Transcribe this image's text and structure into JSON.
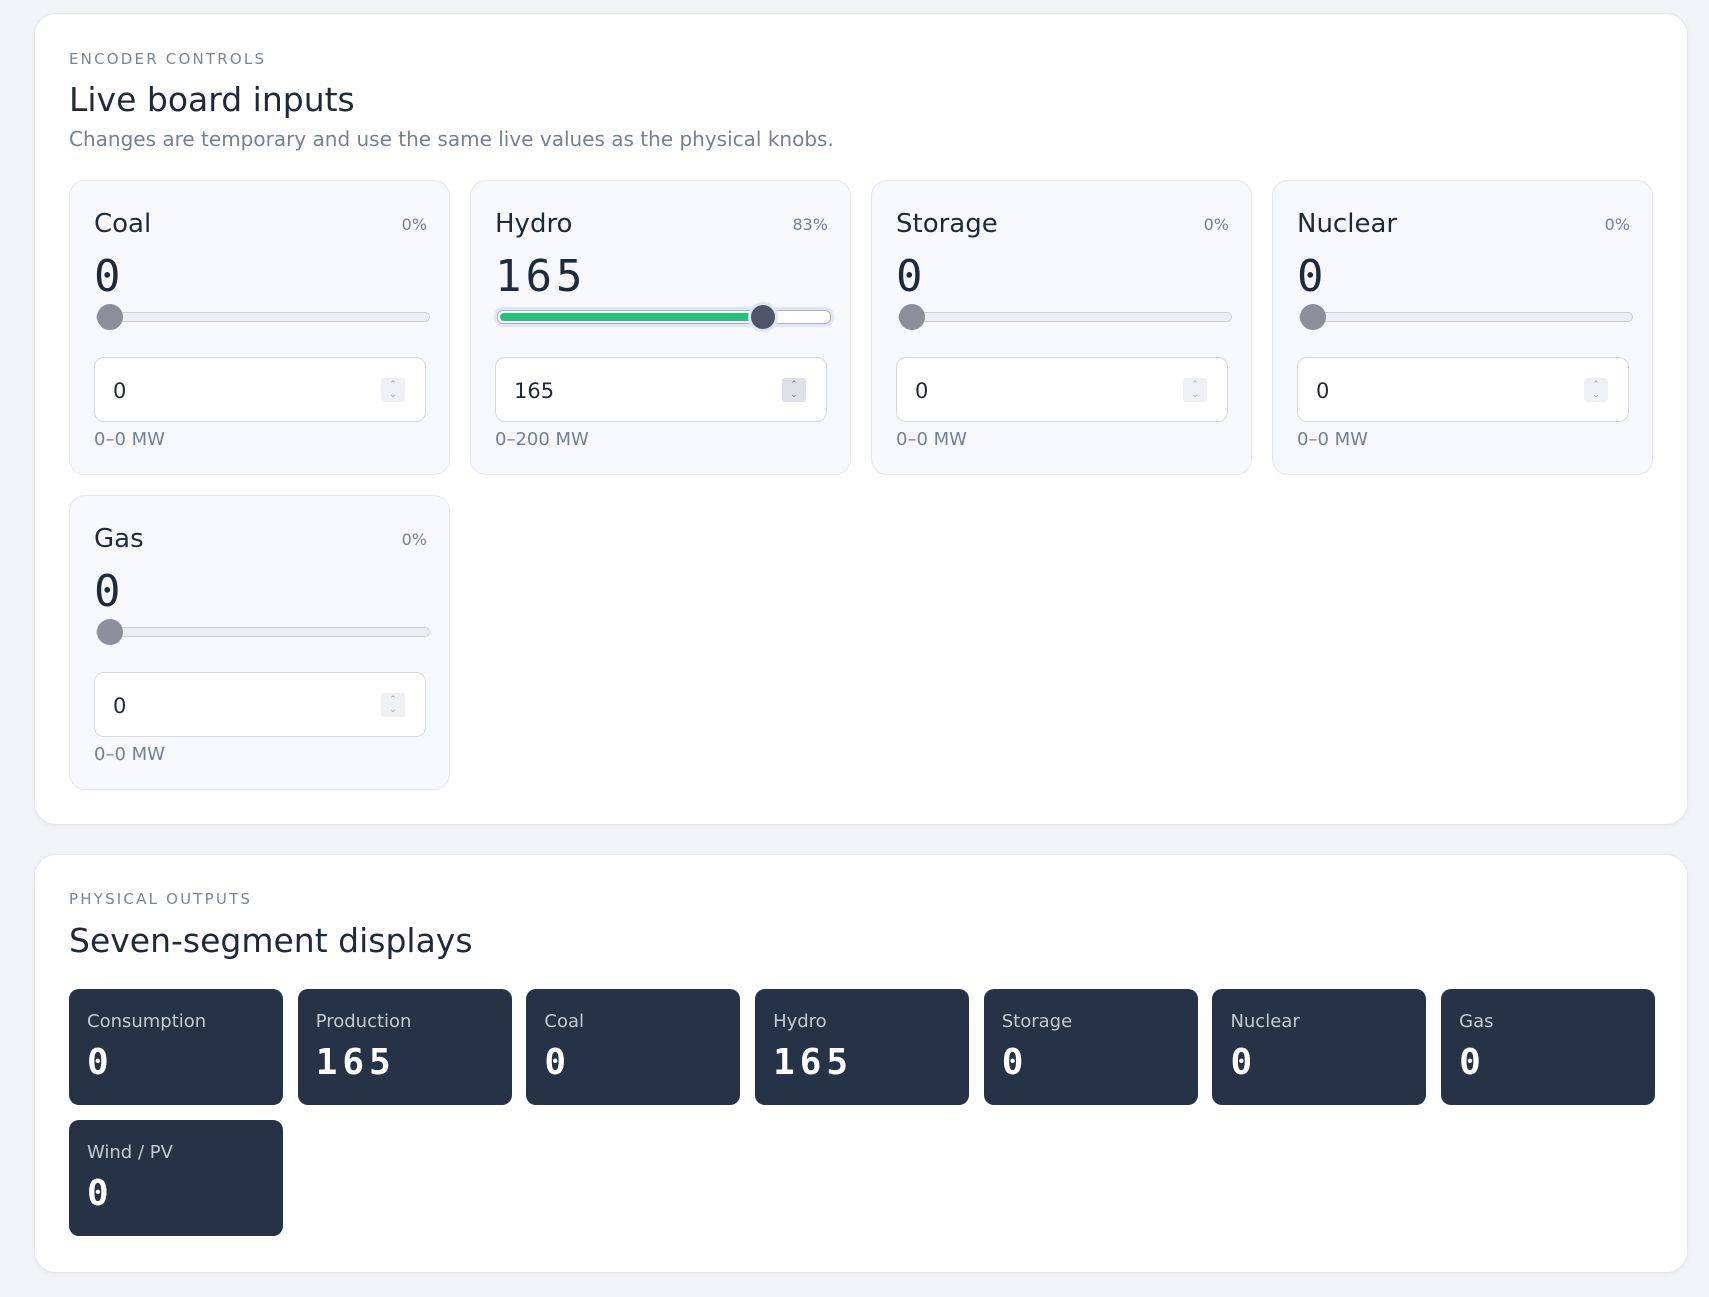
{
  "controls": {
    "eyebrow": "ENCODER CONTROLS",
    "title": "Live board inputs",
    "subtitle": "Changes are temporary and use the same live values as the physical knobs.",
    "knobs": [
      {
        "name": "Coal",
        "percent": "0%",
        "value": "0",
        "input_value": "0",
        "range": "0–0 MW",
        "fraction": 0
      },
      {
        "name": "Hydro",
        "percent": "83%",
        "value": "165",
        "input_value": "165",
        "range": "0–200 MW",
        "fraction": 0.825
      },
      {
        "name": "Storage",
        "percent": "0%",
        "value": "0",
        "input_value": "0",
        "range": "0–0 MW",
        "fraction": 0
      },
      {
        "name": "Nuclear",
        "percent": "0%",
        "value": "0",
        "input_value": "0",
        "range": "0–0 MW",
        "fraction": 0
      },
      {
        "name": "Gas",
        "percent": "0%",
        "value": "0",
        "input_value": "0",
        "range": "0–0 MW",
        "fraction": 0
      }
    ],
    "slider_fill_color": "#27c07a"
  },
  "outputs": {
    "eyebrow": "PHYSICAL OUTPUTS",
    "title": "Seven-segment displays",
    "displays": [
      {
        "label": "Consumption",
        "value": "0"
      },
      {
        "label": "Production",
        "value": "165"
      },
      {
        "label": "Coal",
        "value": "0"
      },
      {
        "label": "Hydro",
        "value": "165"
      },
      {
        "label": "Storage",
        "value": "0"
      },
      {
        "label": "Nuclear",
        "value": "0"
      },
      {
        "label": "Gas",
        "value": "0"
      },
      {
        "label": "Wind / PV",
        "value": "0"
      }
    ],
    "display_bg_color": "#263246"
  }
}
